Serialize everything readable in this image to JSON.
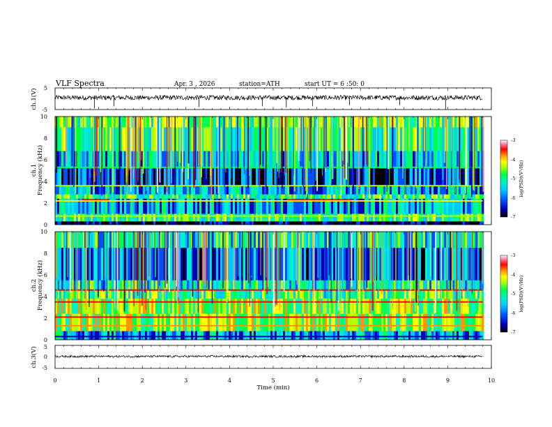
{
  "header": {
    "title": "VLF Spectra",
    "date": "Apr. 3  , 2026",
    "station": "station=ATH",
    "start": "start UT =   6 :50: 0"
  },
  "colors": {
    "spectrum": [
      "#000000",
      "#0000b4",
      "#0050ff",
      "#00c8ff",
      "#00f0c8",
      "#00ff50",
      "#b4ff00",
      "#ffff00",
      "#ff9600",
      "#ff0000",
      "#ff80a0",
      "#ffffff"
    ],
    "trace": "#000000"
  },
  "chart_data": [
    {
      "type": "line",
      "name": "ch1-waveform",
      "ylabel": "ch.1(V)",
      "ylim": [
        -5,
        5
      ],
      "yticks": [
        5,
        -5
      ],
      "xlim": [
        0,
        10
      ],
      "data_extent_min": [
        0,
        9.8
      ],
      "baseline_v": 0.5,
      "spikes": [
        {
          "t": 0.9,
          "v": -4.5
        },
        {
          "t": 1.35,
          "v": -3.5
        },
        {
          "t": 3.3,
          "v": -3.8
        },
        {
          "t": 4.75,
          "v": -3.5
        },
        {
          "t": 5.3,
          "v": -4.0
        },
        {
          "t": 5.9,
          "v": -3.5
        },
        {
          "t": 6.75,
          "v": -3.0
        },
        {
          "t": 7.9,
          "v": -3.0
        },
        {
          "t": 8.95,
          "v": -5.0
        }
      ]
    },
    {
      "type": "heatmap",
      "name": "ch1-spectrogram",
      "ylabel_top": "ch.1",
      "ylabel": "Frequency  (kHz)",
      "ylim": [
        0,
        10
      ],
      "yticks": [
        0,
        2,
        4,
        6,
        8,
        10
      ],
      "xlim": [
        0,
        10
      ],
      "data_extent_min": [
        0,
        9.8
      ],
      "bands": [
        {
          "f": [
            9.0,
            10.0
          ],
          "level": -5.0
        },
        {
          "f": [
            6.8,
            9.0
          ],
          "level": -5.3
        },
        {
          "f": [
            5.2,
            6.8
          ],
          "level": -5.8
        },
        {
          "f": [
            3.6,
            5.2
          ],
          "level": -6.5
        },
        {
          "f": [
            2.8,
            3.6
          ],
          "level": -6.0
        },
        {
          "f": [
            2.4,
            2.8
          ],
          "level": -5.3
        },
        {
          "f": [
            1.0,
            2.4
          ],
          "level": -5.9
        },
        {
          "f": [
            0.3,
            1.0
          ],
          "level": -5.2
        },
        {
          "f": [
            0.0,
            0.3
          ],
          "level": -7.0
        }
      ],
      "lines": [
        {
          "f": 2.3,
          "level": -3.8,
          "t": [
            0.6,
            1.25
          ]
        },
        {
          "f": 2.3,
          "level": -3.8,
          "t": [
            5.3,
            6.8
          ]
        },
        {
          "f": 2.2,
          "level": -4.6,
          "t": [
            0,
            9.8
          ]
        },
        {
          "f": 3.6,
          "level": -5.0,
          "t": [
            0,
            9.8
          ]
        },
        {
          "f": 5.3,
          "level": -5.2,
          "t": [
            0,
            9.8
          ]
        },
        {
          "f": 0.8,
          "level": -4.8,
          "t": [
            0,
            9.8
          ]
        }
      ],
      "colorbar": {
        "label": "log(PSD)(V²/Hz)",
        "range": [
          -7,
          -3
        ],
        "ticks": [
          "-3",
          "-4",
          "-5",
          "-6",
          "-7"
        ]
      }
    },
    {
      "type": "heatmap",
      "name": "ch2-spectrogram",
      "ylabel_top": "ch.2",
      "ylabel": "Frequency  (kHz)",
      "ylim": [
        0,
        10
      ],
      "yticks": [
        0,
        2,
        4,
        6,
        8,
        10
      ],
      "xlim": [
        0,
        10
      ],
      "data_extent_min": [
        0,
        9.8
      ],
      "bands": [
        {
          "f": [
            8.5,
            10.0
          ],
          "level": -5.5
        },
        {
          "f": [
            5.5,
            8.5
          ],
          "level": -6.2
        },
        {
          "f": [
            4.6,
            5.5
          ],
          "level": -5.5
        },
        {
          "f": [
            3.8,
            4.6
          ],
          "level": -5.2
        },
        {
          "f": [
            2.4,
            3.8
          ],
          "level": -4.9
        },
        {
          "f": [
            0.8,
            2.4
          ],
          "level": -4.8
        },
        {
          "f": [
            0.0,
            0.8
          ],
          "level": -6.0
        }
      ],
      "lines": [
        {
          "f": 4.6,
          "level": -3.8,
          "t": [
            0,
            9.8
          ]
        },
        {
          "f": 3.5,
          "level": -3.9,
          "t": [
            0,
            9.8
          ]
        },
        {
          "f": 2.1,
          "level": -3.6,
          "t": [
            0,
            9.8
          ]
        },
        {
          "f": 1.3,
          "level": -4.0,
          "t": [
            0,
            9.8
          ]
        },
        {
          "f": 0.3,
          "level": -6.8,
          "t": [
            0,
            9.8
          ]
        }
      ],
      "colorbar": {
        "label": "log(PSD)(V²/Hz)",
        "range": [
          -7,
          -3
        ],
        "ticks": [
          "-3",
          "-4",
          "-5",
          "-6",
          "-7"
        ]
      }
    },
    {
      "type": "line",
      "name": "ch3-waveform",
      "ylabel": "ch.3(V)",
      "ylim": [
        -5,
        5
      ],
      "yticks": [
        5,
        0,
        -5
      ],
      "xlim": [
        0,
        10
      ],
      "data_extent_min": [
        0,
        9.8
      ],
      "baseline_v": 0.2,
      "xlabel": "Time  (min)",
      "xticks": [
        "0",
        "1",
        "2",
        "3",
        "4",
        "5",
        "6",
        "7",
        "8",
        "9",
        "10"
      ]
    }
  ]
}
